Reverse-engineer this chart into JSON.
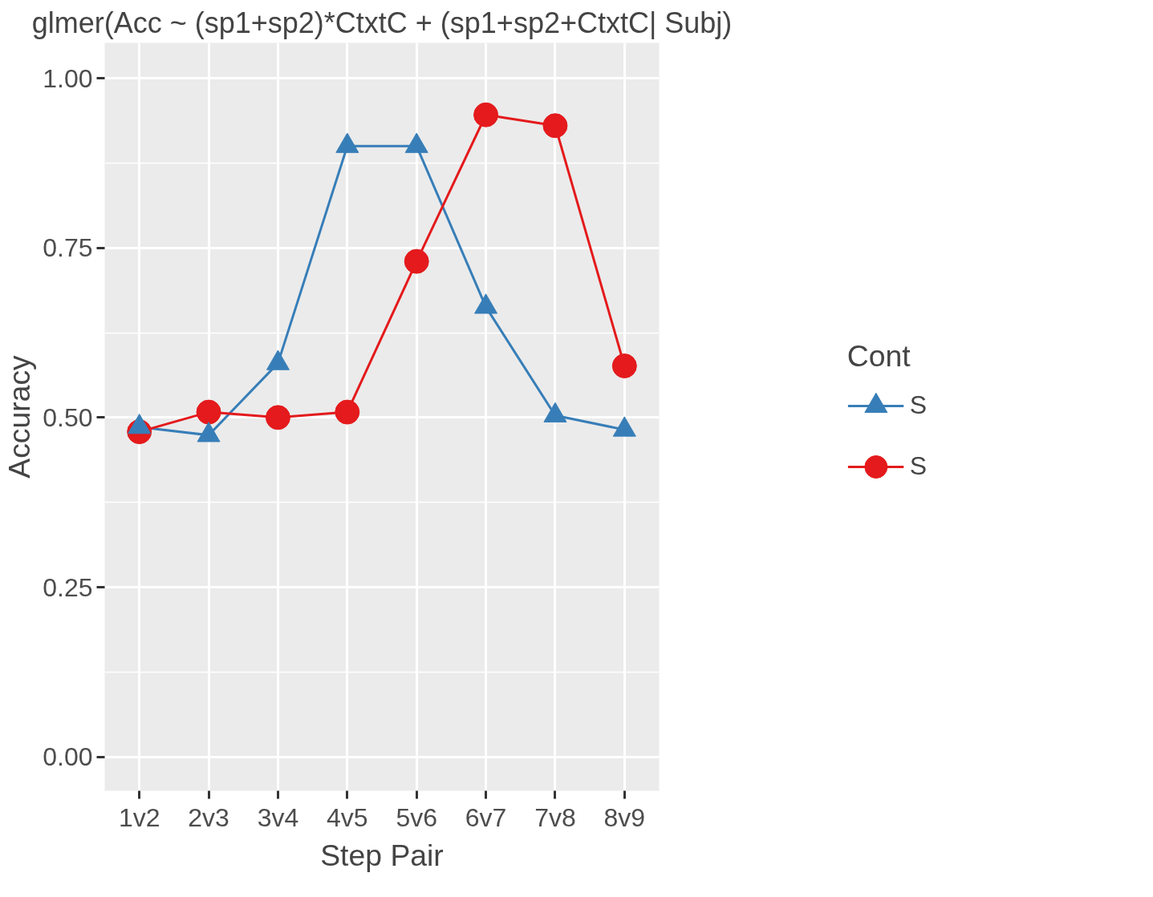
{
  "chart_data": {
    "type": "line",
    "title": "glmer(Acc ~ (sp1+sp2)*CtxtC + (sp1+sp2+CtxtC| Subj)",
    "xlabel": "Step Pair",
    "ylabel": "Accuracy",
    "legend_title": "Cont",
    "categories": [
      "1v2",
      "2v3",
      "3v4",
      "4v5",
      "5v6",
      "6v7",
      "7v8",
      "8v9"
    ],
    "series": [
      {
        "name": "S",
        "color": "#377eb8",
        "marker": "triangle",
        "values": [
          0.486,
          0.474,
          0.58,
          0.9,
          0.9,
          0.663,
          0.503,
          0.482
        ]
      },
      {
        "name": "S",
        "color": "#e41a1c",
        "marker": "circle",
        "values": [
          0.479,
          0.508,
          0.5,
          0.508,
          0.73,
          0.946,
          0.93,
          0.576
        ]
      }
    ],
    "ylim": [
      -0.05,
      1.052
    ],
    "yticks": [
      {
        "value": 0.0,
        "label": "0.00"
      },
      {
        "value": 0.25,
        "label": "0.25"
      },
      {
        "value": 0.5,
        "label": "0.50"
      },
      {
        "value": 0.75,
        "label": "0.75"
      },
      {
        "value": 1.0,
        "label": "1.00"
      }
    ],
    "grid": true,
    "legend": "right",
    "line_style": "solid"
  }
}
